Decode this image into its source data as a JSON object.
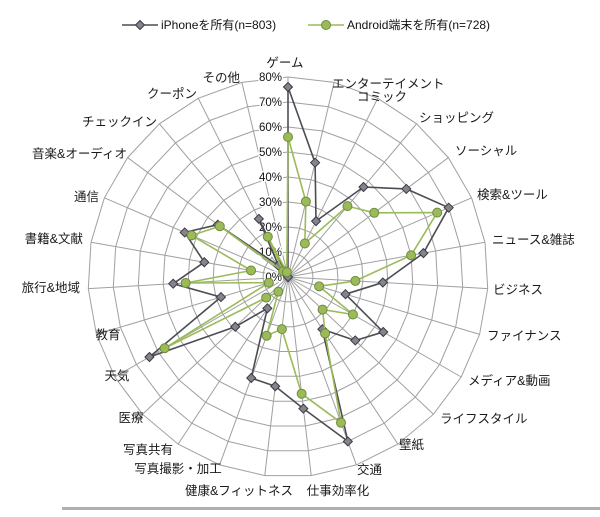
{
  "legend": {
    "iphone_label": "iPhoneを所有(n=803)",
    "android_label": "Android端末を所有(n=728)"
  },
  "colors": {
    "iphone_line": "#4c4c54",
    "iphone_marker_fill": "#84848c",
    "iphone_marker_stroke": "#3a3a42",
    "android_line": "#9bbb59",
    "android_marker_fill": "#9bbb59",
    "android_marker_stroke": "#71893f",
    "grid": "#a0a0a0",
    "divider": "#b0b0b0"
  },
  "chart_data": {
    "type": "radar",
    "categories": [
      "ゲーム",
      "エンターテイメント",
      "コミック",
      "ショッピング",
      "ソーシャル",
      "検索&ツール",
      "ニュース&雑誌",
      "ビジネス",
      "ファイナンス",
      "メディア&動画",
      "ライフスタイル",
      "壁紙",
      "交通",
      "仕事効率化",
      "健康&フィットネス",
      "写真撮影・加工",
      "写真共有",
      "医療",
      "天気",
      "教育",
      "旅行&地域",
      "書籍&文献",
      "通信",
      "音楽&オーディオ",
      "チェックイン",
      "クーポン",
      "その他"
    ],
    "series": [
      {
        "name": "iPhoneを所有(n=803)",
        "values": [
          76,
          47,
          25,
          47,
          59,
          70,
          55,
          38,
          24,
          44,
          37,
          25,
          70,
          53,
          44,
          43,
          15,
          29,
          64,
          28,
          46,
          34,
          45,
          35,
          6,
          26,
          0
        ]
      },
      {
        "name": "Android端末を所有(n=728)",
        "values": [
          56,
          31,
          15,
          37,
          43,
          65,
          50,
          27,
          13,
          30,
          19,
          27,
          62,
          47,
          21,
          25,
          7,
          12,
          57,
          8,
          41,
          15,
          42,
          34,
          3,
          18,
          2
        ]
      }
    ],
    "radial_axis": {
      "min": 0,
      "max": 80,
      "step": 10,
      "tick_labels": [
        "0%",
        "10%",
        "20%",
        "30%",
        "40%",
        "50%",
        "60%",
        "70%",
        "80%"
      ]
    },
    "grid": true,
    "legend_position": "top"
  }
}
